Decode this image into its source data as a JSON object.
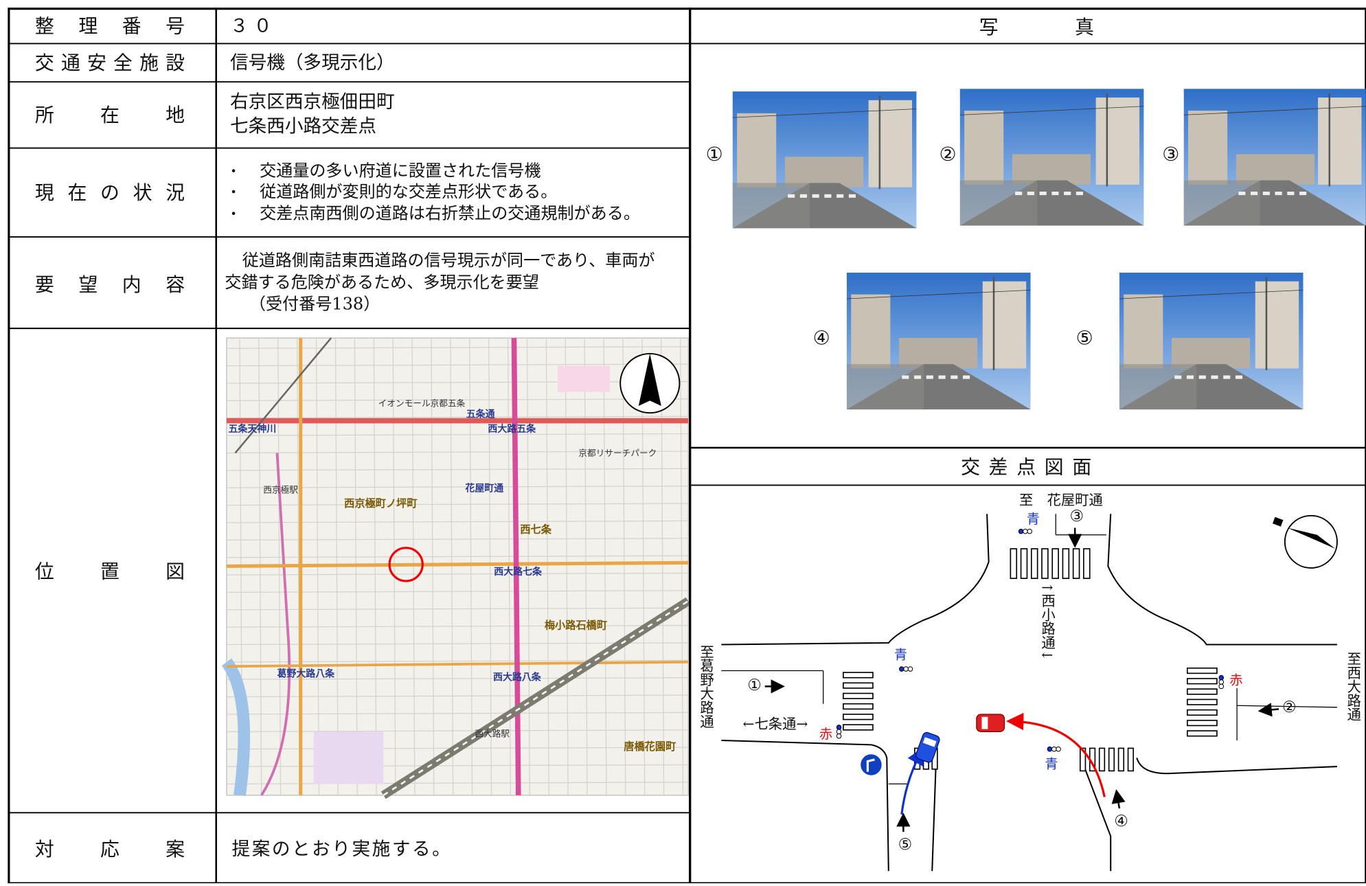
{
  "table": {
    "rows": [
      {
        "label": "整理番号",
        "value": "３０"
      },
      {
        "label": "交通安全施設",
        "value": "信号機（多現示化）"
      },
      {
        "label": "所在地",
        "lines": [
          "右京区西京極佃田町",
          "七条西小路交差点"
        ]
      },
      {
        "label": "現在の状況",
        "lines": [
          "交通量の多い府道に設置された信号機",
          "従道路側が変則的な交差点形状である。",
          "交差点南西側の道路は右折禁止の交通規制がある。"
        ]
      },
      {
        "label": "要望内容",
        "lines": [
          "従道路側南詰東西道路の信号現示が同一であり、車両が",
          "交錯する危険があるため、多現示化を要望",
          "（受付番号138）"
        ]
      },
      {
        "label": "位置図"
      },
      {
        "label": "対応案",
        "value": "提案のとおり実施する。"
      }
    ]
  },
  "photos": {
    "title": "写　　　　真",
    "items": [
      "①",
      "②",
      "③",
      "④",
      "⑤"
    ]
  },
  "map": {
    "labels": [
      "五条通",
      "西大路五条",
      "五条天神川",
      "西京極町ノ坪町",
      "西七条",
      "西大路七条",
      "梅小路石橋町",
      "葛野大路八条",
      "西大路八条",
      "唐橋花園町",
      "花屋町通",
      "西京極駅",
      "西大路駅",
      "京都リサーチパーク",
      "イオンモール京都五条"
    ]
  },
  "diagram": {
    "title": "交差点図面",
    "north_road": "至　花屋町通",
    "cross_road": "↑西小路通↓",
    "west_road": "至葛野大路通",
    "east_road": "至西大路通",
    "main_road": "←七条通→",
    "points": [
      "①",
      "②",
      "③",
      "④",
      "⑤"
    ],
    "signals": [
      "青",
      "青",
      "青",
      "赤",
      "赤"
    ]
  }
}
